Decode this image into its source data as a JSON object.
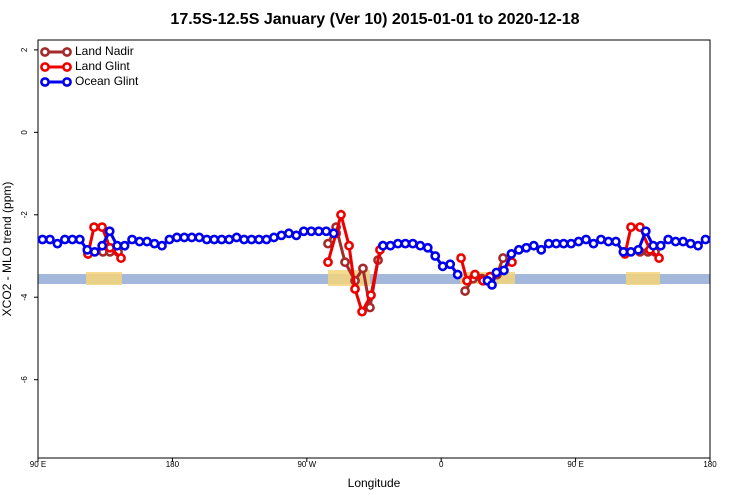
{
  "chart_data": {
    "type": "line",
    "title": "17.5S-12.5S January (Ver 10)   2015-01-01 to 2020-12-18",
    "x_label": "Longitude",
    "y_label": "XCO2 - MLO trend (ppm)",
    "xlim": [
      90,
      540
    ],
    "ylim": [
      -7.9,
      2.24
    ],
    "xticks": [
      {
        "value": 90,
        "label": "90 E"
      },
      {
        "value": 180,
        "label": "180"
      },
      {
        "value": 270,
        "label": "90 W"
      },
      {
        "value": 360,
        "label": "0"
      },
      {
        "value": 450,
        "label": "90 E"
      },
      {
        "value": 540,
        "label": "180"
      }
    ],
    "yticks": [
      2,
      0,
      -2,
      -4,
      -6
    ],
    "grid": false,
    "legend": "top-left",
    "series": [
      {
        "name": "Land Nadir",
        "color": "#a52a2a",
        "x": [
          123.5,
          133.5,
          138.2,
          143.6,
          null,
          284.2,
          289.6,
          295.6,
          302.3,
          307.6,
          312.3,
          317.7,
          321,
          null,
          376,
          381.3,
          387.3,
          392.7,
          397.4,
          401.4,
          null,
          483.1,
          493.1,
          498.5,
          503.2
        ],
        "values": [
          -2.95,
          -2.9,
          -2.9,
          -2.9,
          null,
          -2.7,
          -2.3,
          -3.15,
          -3.6,
          -3.3,
          -4.25,
          -3.1,
          -2.75,
          null,
          -3.85,
          -3.55,
          -3.55,
          -3.5,
          -3.45,
          -3.05,
          null,
          -2.9,
          -2.9,
          -2.9,
          -2.9
        ]
      },
      {
        "name": "Land Glint",
        "color": "#ee0000",
        "x": [
          123.5,
          127.5,
          132.9,
          138.2,
          145.6,
          null,
          284.2,
          289.6,
          292.9,
          298.3,
          302.3,
          307,
          313,
          319,
          null,
          373.3,
          377.3,
          382.6,
          388,
          392.7,
          407.4,
          null,
          483.1,
          487.1,
          493.1,
          499.8,
          505.9
        ],
        "values": [
          -2.95,
          -2.3,
          -2.3,
          -2.8,
          -3.05,
          null,
          -3.15,
          -2.45,
          -2.0,
          -2.75,
          -3.8,
          -4.35,
          -3.95,
          -2.85,
          null,
          -3.05,
          -3.6,
          -3.45,
          -3.6,
          -3.5,
          -3.15,
          null,
          -2.95,
          -2.3,
          -2.3,
          -2.85,
          -3.05
        ]
      },
      {
        "name": "Ocean Glint",
        "color": "#0000ee",
        "x": [
          93,
          98,
          103,
          108,
          113,
          118,
          123,
          128,
          133,
          138,
          143,
          148,
          153,
          158,
          163,
          168,
          173,
          178,
          183,
          188,
          193,
          198,
          203,
          208,
          213,
          218,
          223,
          228,
          233,
          238,
          243,
          248,
          253,
          258,
          263,
          268,
          273,
          278,
          283,
          288,
          null,
          321,
          326,
          331,
          336,
          341,
          346,
          351,
          356,
          361,
          366,
          371,
          null,
          391,
          394,
          397,
          402,
          407,
          412,
          417,
          422,
          427,
          432,
          437,
          442,
          447,
          452,
          457,
          462,
          467,
          472,
          477,
          482,
          487,
          492,
          497,
          502,
          507,
          512,
          517,
          522,
          527,
          532,
          537
        ],
        "values": [
          -2.6,
          -2.6,
          -2.7,
          -2.6,
          -2.6,
          -2.6,
          -2.85,
          -2.9,
          -2.75,
          -2.4,
          -2.75,
          -2.75,
          -2.6,
          -2.65,
          -2.65,
          -2.7,
          -2.75,
          -2.6,
          -2.55,
          -2.55,
          -2.55,
          -2.55,
          -2.6,
          -2.6,
          -2.6,
          -2.6,
          -2.55,
          -2.6,
          -2.6,
          -2.6,
          -2.6,
          -2.55,
          -2.5,
          -2.45,
          -2.5,
          -2.4,
          -2.4,
          -2.4,
          -2.4,
          -2.45,
          null,
          -2.75,
          -2.75,
          -2.7,
          -2.7,
          -2.7,
          -2.75,
          -2.8,
          -3.0,
          -3.25,
          -3.2,
          -3.45,
          null,
          -3.6,
          -3.7,
          -3.4,
          -3.35,
          -2.95,
          -2.85,
          -2.8,
          -2.75,
          -2.85,
          -2.7,
          -2.7,
          -2.7,
          -2.7,
          -2.65,
          -2.6,
          -2.7,
          -2.6,
          -2.65,
          -2.65,
          -2.9,
          -2.9,
          -2.85,
          -2.4,
          -2.75,
          -2.75,
          -2.6,
          -2.65,
          -2.65,
          -2.7,
          -2.75,
          -2.6
        ]
      }
    ]
  }
}
